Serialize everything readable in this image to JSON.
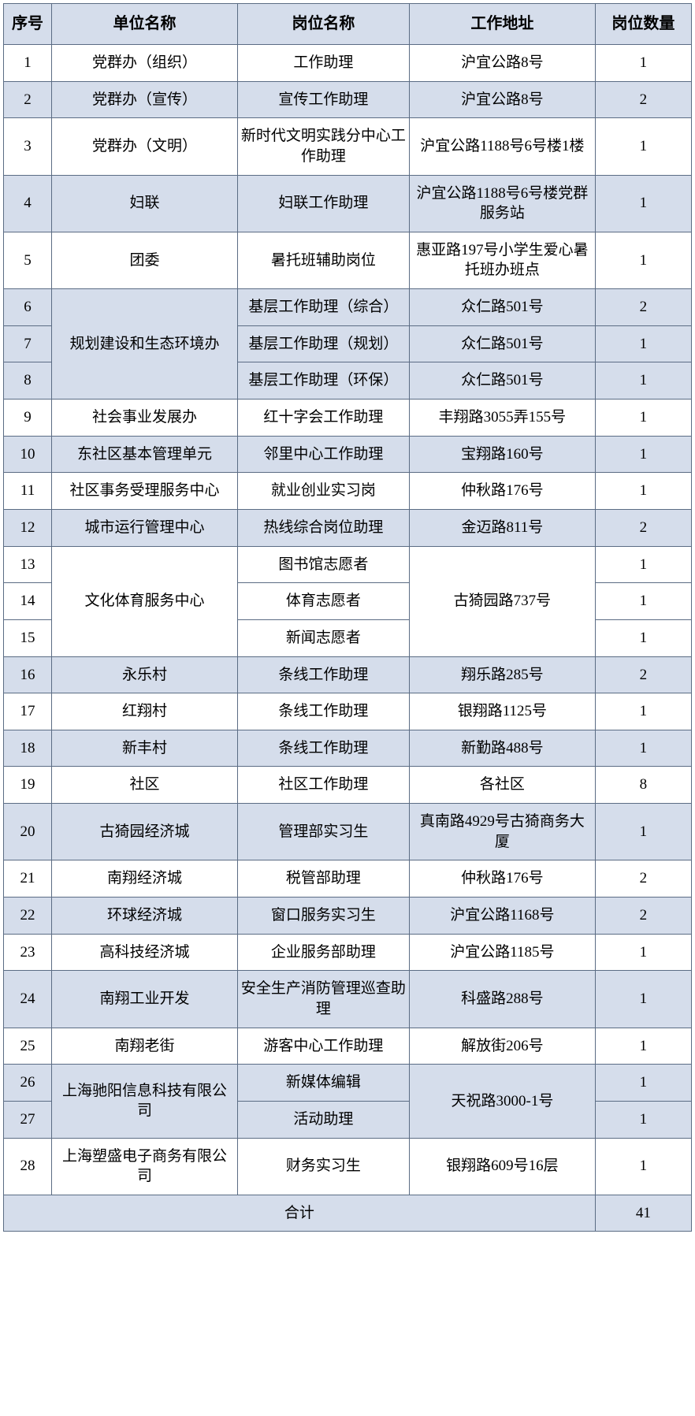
{
  "columns": [
    "序号",
    "单位名称",
    "岗位名称",
    "工作地址",
    "岗位数量"
  ],
  "col_widths_pct": [
    7,
    27,
    25,
    27,
    14
  ],
  "header_bg": "#d5ddeb",
  "shaded_bg": "#d5ddeb",
  "border_color": "#5b6c84",
  "font_size_pt": 19,
  "header_font_size_pt": 20,
  "rows": [
    {
      "idx": "1",
      "unit": "党群办（组织）",
      "pos": "工作助理",
      "addr": "沪宜公路8号",
      "cnt": "1",
      "shaded": false
    },
    {
      "idx": "2",
      "unit": "党群办（宣传）",
      "pos": "宣传工作助理",
      "addr": "沪宜公路8号",
      "cnt": "2",
      "shaded": true
    },
    {
      "idx": "3",
      "unit": "党群办（文明）",
      "pos": "新时代文明实践分中心工作助理",
      "addr": "沪宜公路1188号6号楼1楼",
      "cnt": "1",
      "shaded": false
    },
    {
      "idx": "4",
      "unit": "妇联",
      "pos": "妇联工作助理",
      "addr": "沪宜公路1188号6号楼党群服务站",
      "cnt": "1",
      "shaded": true
    },
    {
      "idx": "5",
      "unit": "团委",
      "pos": "暑托班辅助岗位",
      "addr": "惠亚路197号小学生爱心暑托班办班点",
      "cnt": "1",
      "shaded": false
    },
    {
      "idx": "6",
      "unit": "规划建设和生态环境办",
      "unit_rowspan": 3,
      "pos": "基层工作助理（综合）",
      "addr": "众仁路501号",
      "cnt": "2",
      "shaded": true
    },
    {
      "idx": "7",
      "pos": "基层工作助理（规划）",
      "addr": "众仁路501号",
      "cnt": "1",
      "shaded": true
    },
    {
      "idx": "8",
      "pos": "基层工作助理（环保）",
      "addr": "众仁路501号",
      "cnt": "1",
      "shaded": true
    },
    {
      "idx": "9",
      "unit": "社会事业发展办",
      "pos": "红十字会工作助理",
      "addr": "丰翔路3055弄155号",
      "cnt": "1",
      "shaded": false
    },
    {
      "idx": "10",
      "unit": "东社区基本管理单元",
      "pos": "邻里中心工作助理",
      "addr": "宝翔路160号",
      "cnt": "1",
      "shaded": true
    },
    {
      "idx": "11",
      "unit": "社区事务受理服务中心",
      "pos": "就业创业实习岗",
      "addr": "仲秋路176号",
      "cnt": "1",
      "shaded": false
    },
    {
      "idx": "12",
      "unit": "城市运行管理中心",
      "pos": "热线综合岗位助理",
      "addr": "金迈路811号",
      "cnt": "2",
      "shaded": true
    },
    {
      "idx": "13",
      "unit": "文化体育服务中心",
      "unit_rowspan": 3,
      "pos": "图书馆志愿者",
      "addr": "古猗园路737号",
      "addr_rowspan": 3,
      "cnt": "1",
      "shaded": false
    },
    {
      "idx": "14",
      "pos": "体育志愿者",
      "cnt": "1",
      "shaded": false
    },
    {
      "idx": "15",
      "pos": "新闻志愿者",
      "cnt": "1",
      "shaded": false
    },
    {
      "idx": "16",
      "unit": "永乐村",
      "pos": "条线工作助理",
      "addr": "翔乐路285号",
      "cnt": "2",
      "shaded": true
    },
    {
      "idx": "17",
      "unit": "红翔村",
      "pos": "条线工作助理",
      "addr": "银翔路1125号",
      "cnt": "1",
      "shaded": false
    },
    {
      "idx": "18",
      "unit": "新丰村",
      "pos": "条线工作助理",
      "addr": "新勤路488号",
      "cnt": "1",
      "shaded": true
    },
    {
      "idx": "19",
      "unit": "社区",
      "pos": "社区工作助理",
      "addr": "各社区",
      "cnt": "8",
      "shaded": false
    },
    {
      "idx": "20",
      "unit": "古猗园经济城",
      "pos": "管理部实习生",
      "addr": "真南路4929号古猗商务大厦",
      "cnt": "1",
      "shaded": true
    },
    {
      "idx": "21",
      "unit": "南翔经济城",
      "pos": "税管部助理",
      "addr": "仲秋路176号",
      "cnt": "2",
      "shaded": false
    },
    {
      "idx": "22",
      "unit": "环球经济城",
      "pos": "窗口服务实习生",
      "addr": "沪宜公路1168号",
      "cnt": "2",
      "shaded": true
    },
    {
      "idx": "23",
      "unit": "高科技经济城",
      "pos": "企业服务部助理",
      "addr": "沪宜公路1185号",
      "cnt": "1",
      "shaded": false
    },
    {
      "idx": "24",
      "unit": "南翔工业开发",
      "pos": "安全生产消防管理巡查助理",
      "addr": "科盛路288号",
      "cnt": "1",
      "shaded": true
    },
    {
      "idx": "25",
      "unit": "南翔老街",
      "pos": "游客中心工作助理",
      "addr": "解放街206号",
      "cnt": "1",
      "shaded": false
    },
    {
      "idx": "26",
      "unit": "上海驰阳信息科技有限公司",
      "unit_rowspan": 2,
      "pos": "新媒体编辑",
      "addr": "天祝路3000-1号",
      "addr_rowspan": 2,
      "cnt": "1",
      "shaded": true
    },
    {
      "idx": "27",
      "pos": "活动助理",
      "cnt": "1",
      "shaded": true
    },
    {
      "idx": "28",
      "unit": "上海塑盛电子商务有限公司",
      "pos": "财务实习生",
      "addr": "银翔路609号16层",
      "cnt": "1",
      "shaded": false
    }
  ],
  "total_label": "合计",
  "total_value": "41"
}
